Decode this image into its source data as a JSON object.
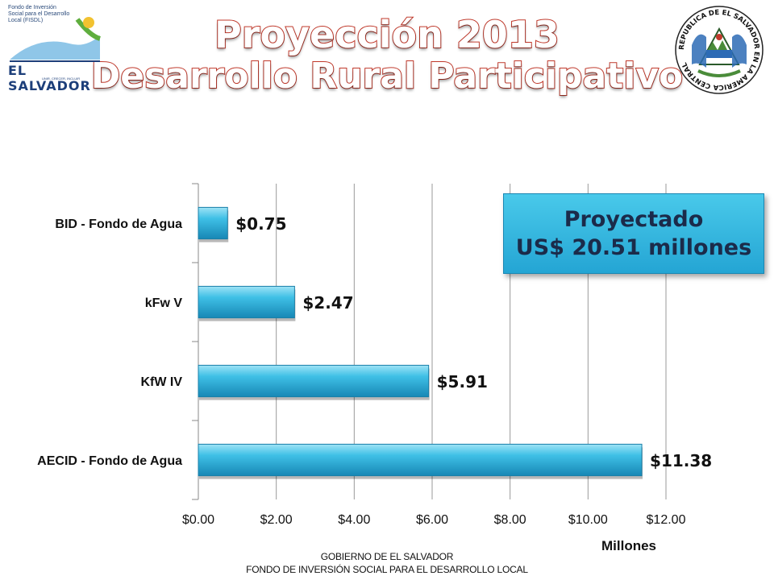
{
  "header": {
    "title_line1": "Proyección 2013",
    "title_line2": "Desarrollo Rural Participativo"
  },
  "logo": {
    "org_text": "Fondo de Inversión Social para el Desarrollo Local (FISDL)",
    "country": "EL SALVADOR",
    "tagline": "UNIR, CRECER, INCLUIR"
  },
  "seal": {
    "ring_text": "REPUBLICA DE EL SALVADOR EN LA AMERICA CENTRAL"
  },
  "callout": {
    "line1": "Proyectado",
    "line2": "US$ 20.51 millones"
  },
  "footer": {
    "line1": "GOBIERNO DE EL SALVADOR",
    "line2": "FONDO DE INVERSIÓN SOCIAL PARA EL DESARROLLO LOCAL"
  },
  "colors": {
    "bar": "#35b8e0",
    "bar_dark": "#1a7fa8",
    "title_stroke": "#c0392b",
    "callout": "#33b5e0"
  },
  "chart_data": {
    "type": "bar",
    "orientation": "horizontal",
    "categories": [
      "BID - Fondo de Agua",
      "kFw V",
      "KfW IV",
      "AECID - Fondo de Agua"
    ],
    "values": [
      0.75,
      2.47,
      5.91,
      11.38
    ],
    "value_labels": [
      "$0.75",
      "$2.47",
      "$5.91",
      "$11.38"
    ],
    "xlim": [
      0,
      12
    ],
    "x_ticks": [
      "$0.00",
      "$2.00",
      "$4.00",
      "$6.00",
      "$8.00",
      "$10.00",
      "$12.00"
    ],
    "xlabel": "Millones",
    "title": "",
    "grid": true,
    "legend": "none"
  }
}
